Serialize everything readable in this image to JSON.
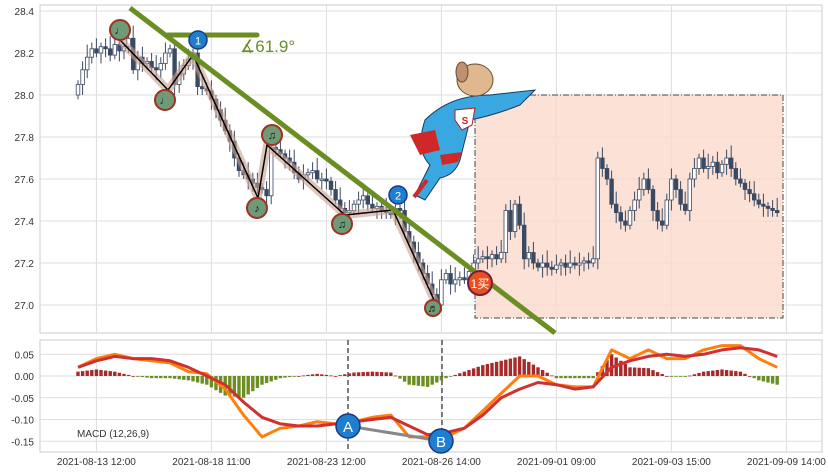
{
  "chart_data": [
    {
      "type": "candlestick",
      "ylim": [
        26.95,
        28.42
      ],
      "yticks": [
        "28.4",
        "28.2",
        "28.0",
        "27.8",
        "27.6",
        "27.4",
        "27.2",
        "27.0"
      ],
      "grid": true,
      "closes": [
        28.05,
        28.12,
        28.18,
        28.22,
        28.2,
        28.23,
        28.22,
        28.19,
        28.24,
        28.21,
        28.23,
        28.27,
        28.12,
        28.18,
        28.15,
        28.16,
        28.13,
        28.12,
        28.15,
        28.2,
        28.22,
        28.05,
        28.1,
        28.14,
        28.17,
        28.2,
        28.04,
        28.03,
        28.02,
        27.98,
        27.93,
        27.88,
        27.83,
        27.78,
        27.7,
        27.64,
        27.62,
        27.6,
        27.58,
        27.56,
        27.55,
        27.52,
        27.75,
        27.74,
        27.72,
        27.7,
        27.68,
        27.63,
        27.6,
        27.62,
        27.63,
        27.64,
        27.6,
        27.6,
        27.59,
        27.55,
        27.5,
        27.46,
        27.44,
        27.45,
        27.48,
        27.5,
        27.52,
        27.48,
        27.46,
        27.47,
        27.45,
        27.44,
        27.43,
        27.46,
        27.45,
        27.35,
        27.3,
        27.25,
        27.2,
        27.15,
        27.1,
        27.05,
        27.0,
        27.12,
        27.15,
        27.1,
        27.12,
        27.13,
        27.12,
        27.16,
        27.2,
        27.22,
        27.23,
        27.22,
        27.24,
        27.22,
        27.25,
        27.45,
        27.35,
        27.48,
        27.38,
        27.22,
        27.25,
        27.2,
        27.18,
        27.2,
        27.18,
        27.17,
        27.19,
        27.2,
        27.18,
        27.2,
        27.19,
        27.2,
        27.21,
        27.2,
        27.22,
        27.7,
        27.65,
        27.6,
        27.48,
        27.44,
        27.4,
        27.38,
        27.45,
        27.5,
        27.55,
        27.6,
        27.55,
        27.45,
        27.4,
        27.38,
        27.5,
        27.6,
        27.55,
        27.48,
        27.45,
        27.6,
        27.65,
        27.7,
        27.65,
        27.66,
        27.68,
        27.63,
        27.67,
        27.7,
        27.65,
        27.6,
        27.58,
        27.55,
        27.53,
        27.5,
        27.48,
        27.47,
        27.46,
        27.45,
        27.44
      ],
      "xticks": [
        "2021-08-13 12:00",
        "2021-08-18 11:00",
        "2021-08-23 12:00",
        "2021-08-26 14:00",
        "2021-09-01 09:00",
        "2021-09-03 15:00",
        "2021-09-09 14:00"
      ],
      "annotations": {
        "angle_label": "∡61.9°",
        "markers": [
          "♩",
          "♩",
          "♫",
          "♪",
          "♫",
          "♬"
        ],
        "points": [
          "1",
          "2"
        ],
        "buy_signal": "1买"
      },
      "colors": {
        "trendline": "#6b8e23",
        "zone": "#fbd9cc",
        "candle_down": "#3b4a63",
        "zigzag": "#000000",
        "zigzag_glow": "#c9a090"
      }
    },
    {
      "type": "line",
      "label": "MACD (12,26,9)",
      "ylim": [
        -0.165,
        0.085
      ],
      "yticks": [
        "0.05",
        "0.00",
        "-0.05",
        "-0.10",
        "-0.15"
      ],
      "macd": [
        0.02,
        0.04,
        0.05,
        0.04,
        0.035,
        0.03,
        0.01,
        0.005,
        -0.03,
        -0.09,
        -0.14,
        -0.12,
        -0.115,
        -0.105,
        -0.11,
        -0.105,
        -0.095,
        -0.09,
        -0.14,
        -0.14,
        -0.14,
        -0.12,
        -0.08,
        -0.04,
        0.0,
        0.0,
        -0.02,
        -0.025,
        -0.025,
        0.06,
        0.04,
        0.06,
        0.04,
        0.04,
        0.06,
        0.07,
        0.07,
        0.04,
        0.02
      ],
      "signal": [
        0.02,
        0.035,
        0.045,
        0.04,
        0.04,
        0.035,
        0.02,
        0.0,
        -0.02,
        -0.06,
        -0.095,
        -0.11,
        -0.115,
        -0.115,
        -0.11,
        -0.105,
        -0.1,
        -0.095,
        -0.115,
        -0.135,
        -0.13,
        -0.12,
        -0.09,
        -0.05,
        -0.03,
        -0.015,
        -0.02,
        -0.03,
        -0.025,
        0.02,
        0.035,
        0.045,
        0.05,
        0.045,
        0.05,
        0.06,
        0.065,
        0.06,
        0.045
      ],
      "histogram": [
        0.01,
        0.015,
        0.01,
        0.0,
        -0.005,
        -0.005,
        -0.01,
        -0.02,
        -0.045,
        -0.05,
        -0.02,
        -0.005,
        0.0,
        0.005,
        0.0,
        0.008,
        0.01,
        0.008,
        -0.02,
        -0.025,
        -0.005,
        0.01,
        0.025,
        0.035,
        0.045,
        0.02,
        -0.005,
        -0.005,
        -0.005,
        0.05,
        0.02,
        0.018,
        0.0,
        -0.002,
        0.01,
        0.015,
        0.01,
        -0.01,
        -0.02
      ],
      "divergence_labels": [
        "A",
        "B"
      ],
      "colors": {
        "macd": "#ff7f0e",
        "signal": "#d03030",
        "hist_pos": "#a52a2a",
        "hist_neg": "#6b8e23"
      }
    }
  ]
}
